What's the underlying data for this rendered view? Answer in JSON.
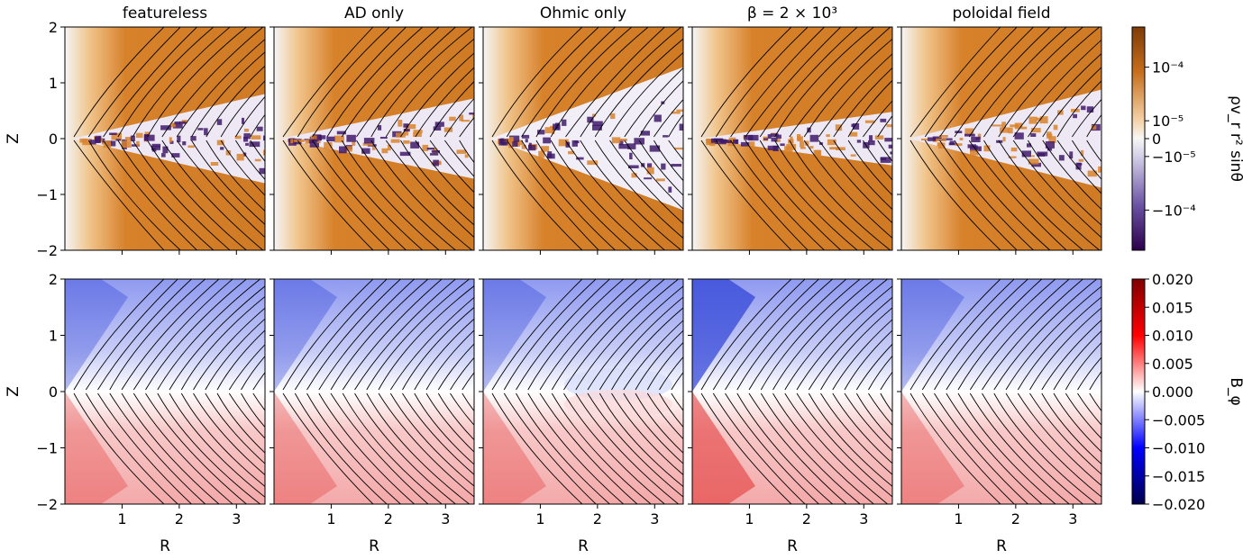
{
  "colors": {
    "top_positive": "#d9822b",
    "top_negative": "#3f1a6b",
    "bottom_positive": "#e33a3a",
    "bottom_negative": "#2b3fd6",
    "field_lines": "#000000"
  },
  "chart_data": {
    "type": "heatmap",
    "panel_titles": [
      "featureless",
      "AD only",
      "Ohmic only",
      "β = 2 × 10³",
      "poloidal field"
    ],
    "xlabel": "R",
    "ylabel": "Z",
    "xlim": [
      0,
      3.5
    ],
    "ylim": [
      -2,
      2
    ],
    "x_ticks": [
      1,
      2,
      3
    ],
    "y_ticks": [
      -2,
      -1,
      0,
      1,
      2
    ],
    "rows": [
      {
        "quantity": "ρv_r r² sinθ",
        "colormap": "PuOr (symlog)",
        "colorbar_ticks": [
          "10⁻⁴",
          "10⁻⁵",
          "0",
          "−10⁻⁵",
          "−10⁻⁴"
        ],
        "colorbar_values": [
          0.0001,
          1e-05,
          0,
          -1e-05,
          -0.0001
        ]
      },
      {
        "quantity": "B_φ",
        "colormap": "seismic",
        "clim": [
          -0.02,
          0.02
        ],
        "colorbar_ticks": [
          "0.020",
          "0.015",
          "0.010",
          "0.005",
          "0.000",
          "−0.005",
          "−0.010",
          "−0.015",
          "−0.020"
        ],
        "colorbar_values": [
          0.02,
          0.015,
          0.01,
          0.005,
          0,
          -0.005,
          -0.01,
          -0.015,
          -0.02
        ]
      }
    ]
  }
}
